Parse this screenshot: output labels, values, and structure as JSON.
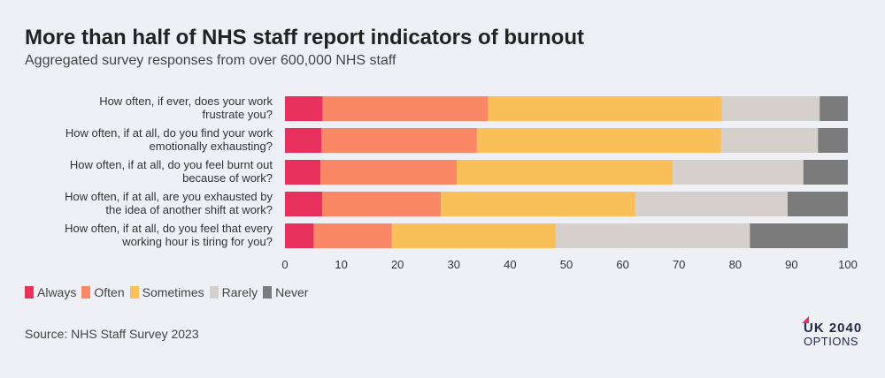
{
  "header": {
    "title": "More than half of NHS staff report indicators of burnout",
    "subtitle": "Aggregated survey responses from over 600,000 NHS staff"
  },
  "source": "Source: NHS Staff Survey 2023",
  "logo": {
    "line1": "UK 2040",
    "line2": "OPTIONS"
  },
  "colors": {
    "Always": "#e8305c",
    "Often": "#fa8866",
    "Sometimes": "#f9c05a",
    "Rarely": "#d5d0cb",
    "Never": "#7b7b7b",
    "logo_accent": "#e8305c"
  },
  "chart_data": {
    "type": "bar",
    "orientation": "horizontal",
    "stacked": true,
    "categories": [
      [
        "How often, if ever, does your work",
        "frustrate you?"
      ],
      [
        "How often, if at all, do you find your work",
        "emotionally exhausting?"
      ],
      [
        "How often, if at all, do you feel burnt out",
        "because of work?"
      ],
      [
        "How often, if at all, are you exhausted by",
        "the idea of another shift at work?"
      ],
      [
        "How often, if at all, do you feel that every",
        "working hour is tiring for you?"
      ]
    ],
    "series": [
      {
        "name": "Always",
        "values": [
          6.7,
          6.5,
          6.3,
          6.6,
          5.1
        ]
      },
      {
        "name": "Often",
        "values": [
          29.4,
          27.6,
          24.2,
          21.1,
          13.9
        ]
      },
      {
        "name": "Sometimes",
        "values": [
          41.5,
          43.4,
          38.4,
          34.6,
          29.1
        ]
      },
      {
        "name": "Rarely",
        "values": [
          17.4,
          17.2,
          23.2,
          27.0,
          34.5
        ]
      },
      {
        "name": "Never",
        "values": [
          5.0,
          5.3,
          7.9,
          10.7,
          17.4
        ]
      }
    ],
    "xlim": [
      0,
      100
    ],
    "xticks": [
      0,
      10,
      20,
      30,
      40,
      50,
      60,
      70,
      80,
      90,
      100
    ],
    "xlabel": "",
    "ylabel": "",
    "grid": false,
    "legend": "bottom-left"
  }
}
